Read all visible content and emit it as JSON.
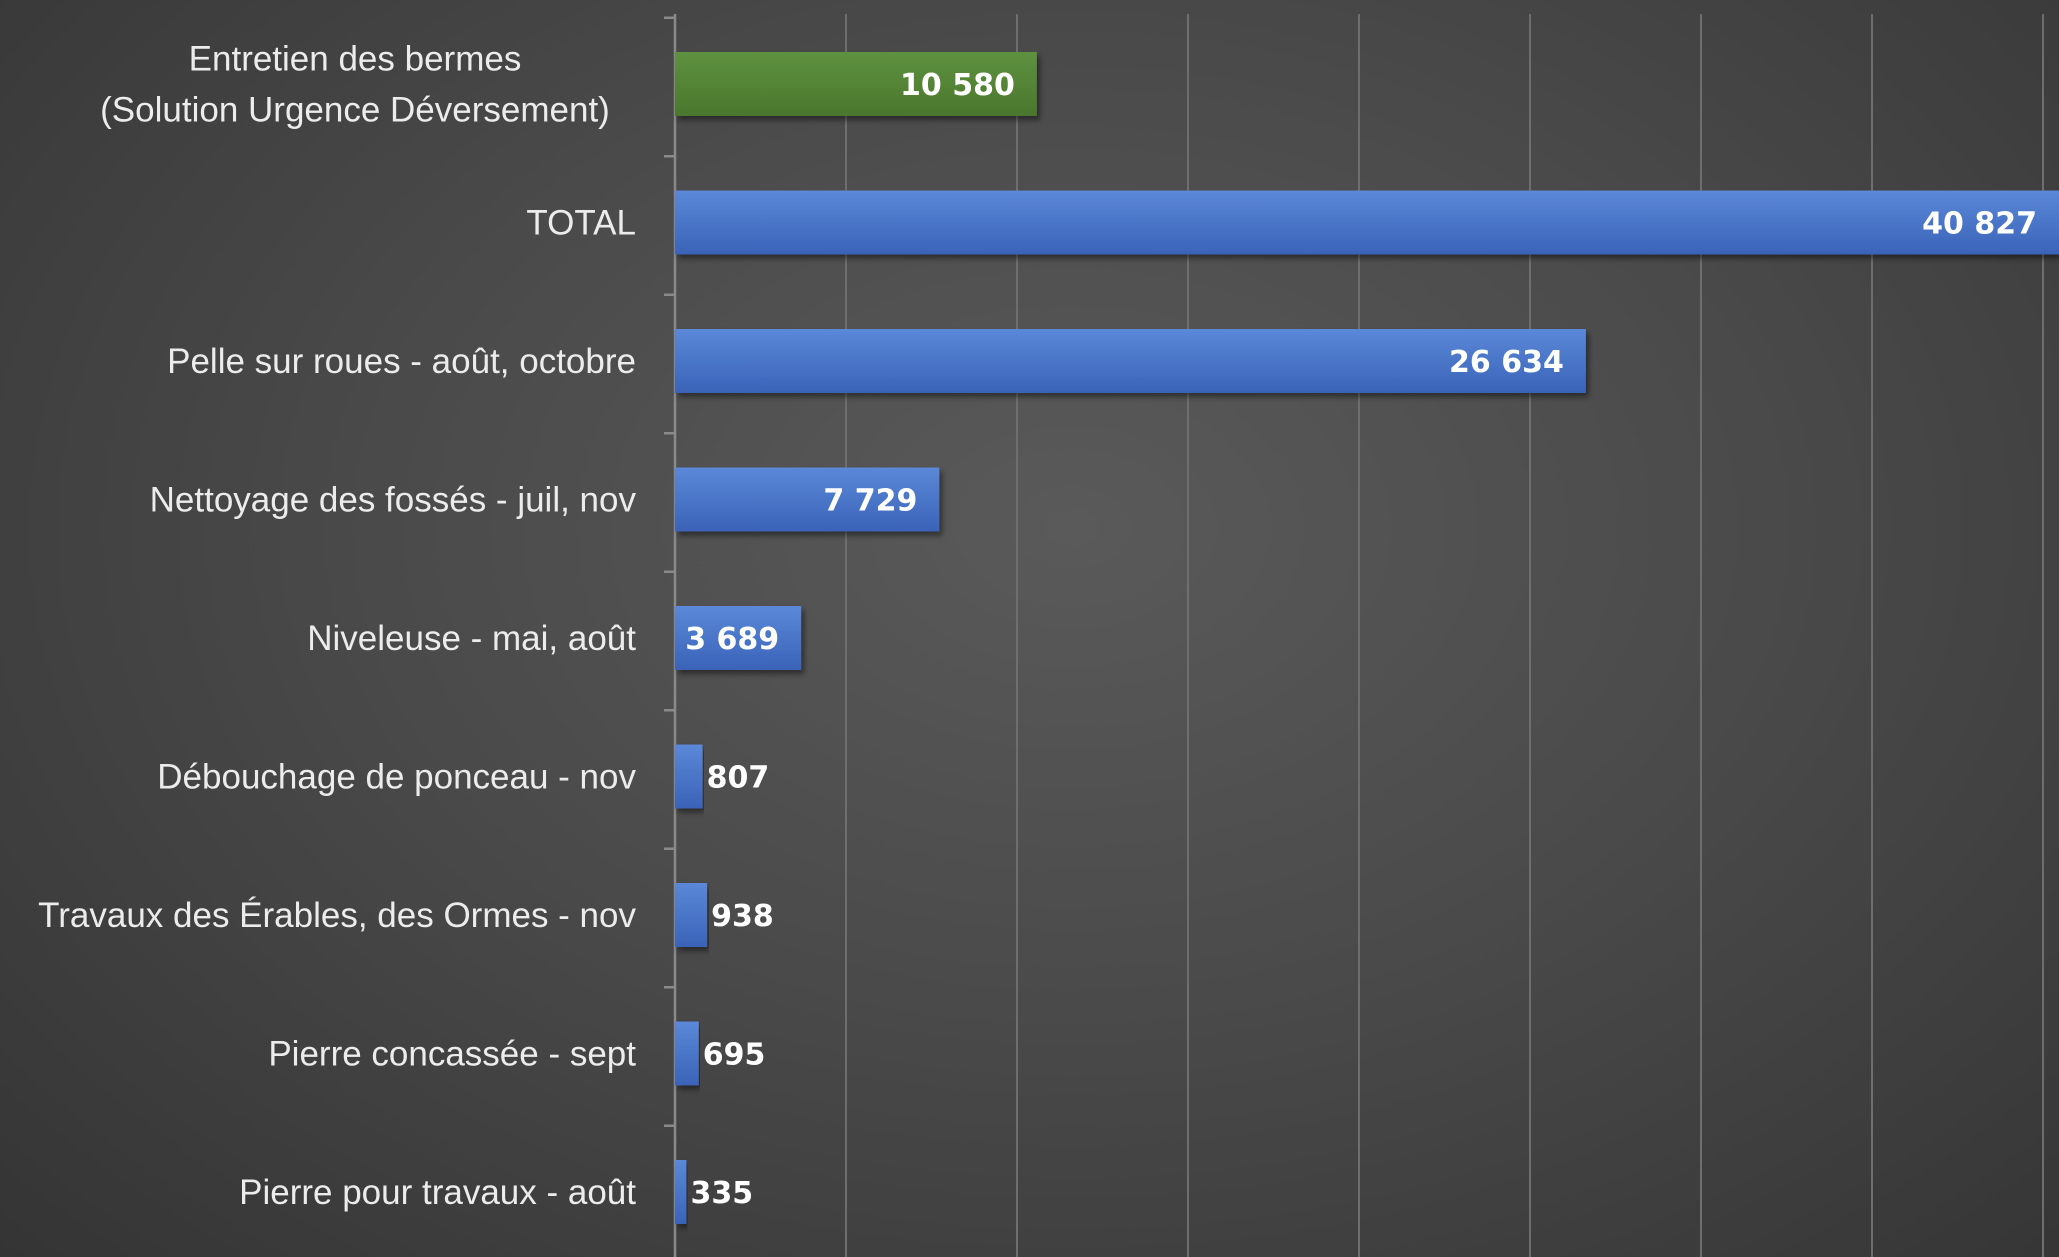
{
  "chart_data": {
    "type": "bar",
    "orientation": "horizontal",
    "categories": [
      [
        "Entretien des bermes",
        "(Solution Urgence Déversement)"
      ],
      [
        "TOTAL"
      ],
      [
        "Pelle sur roues - août, octobre"
      ],
      [
        "Nettoyage des fossés - juil, nov"
      ],
      [
        "Niveleuse - mai, août"
      ],
      [
        "Débouchage de ponceau - nov"
      ],
      [
        "Travaux des Érables, des Ormes - nov"
      ],
      [
        "Pierre concassée - sept"
      ],
      [
        "Pierre pour travaux - août"
      ]
    ],
    "values": [
      10580,
      40827,
      26634,
      7729,
      3689,
      807,
      938,
      695,
      335
    ],
    "value_labels": [
      "10 580",
      "40 827",
      "26 634",
      "7 729",
      "3 689",
      "807",
      "938",
      "695",
      "335"
    ],
    "bar_colors": [
      "#548235",
      "#4472c4",
      "#4472c4",
      "#4472c4",
      "#4472c4",
      "#4472c4",
      "#4472c4",
      "#4472c4",
      "#4472c4"
    ],
    "data_label_position": "inside-end",
    "xlim": [
      0,
      40000
    ],
    "x_gridline_step": 5000,
    "grid": true,
    "x_tick_labels_shown": false,
    "legend": "none",
    "background_color": "#4a4a4a",
    "gridline_color": "#6e6e6e",
    "label_color": "#ececec",
    "value_label_color": "#ffffff"
  }
}
